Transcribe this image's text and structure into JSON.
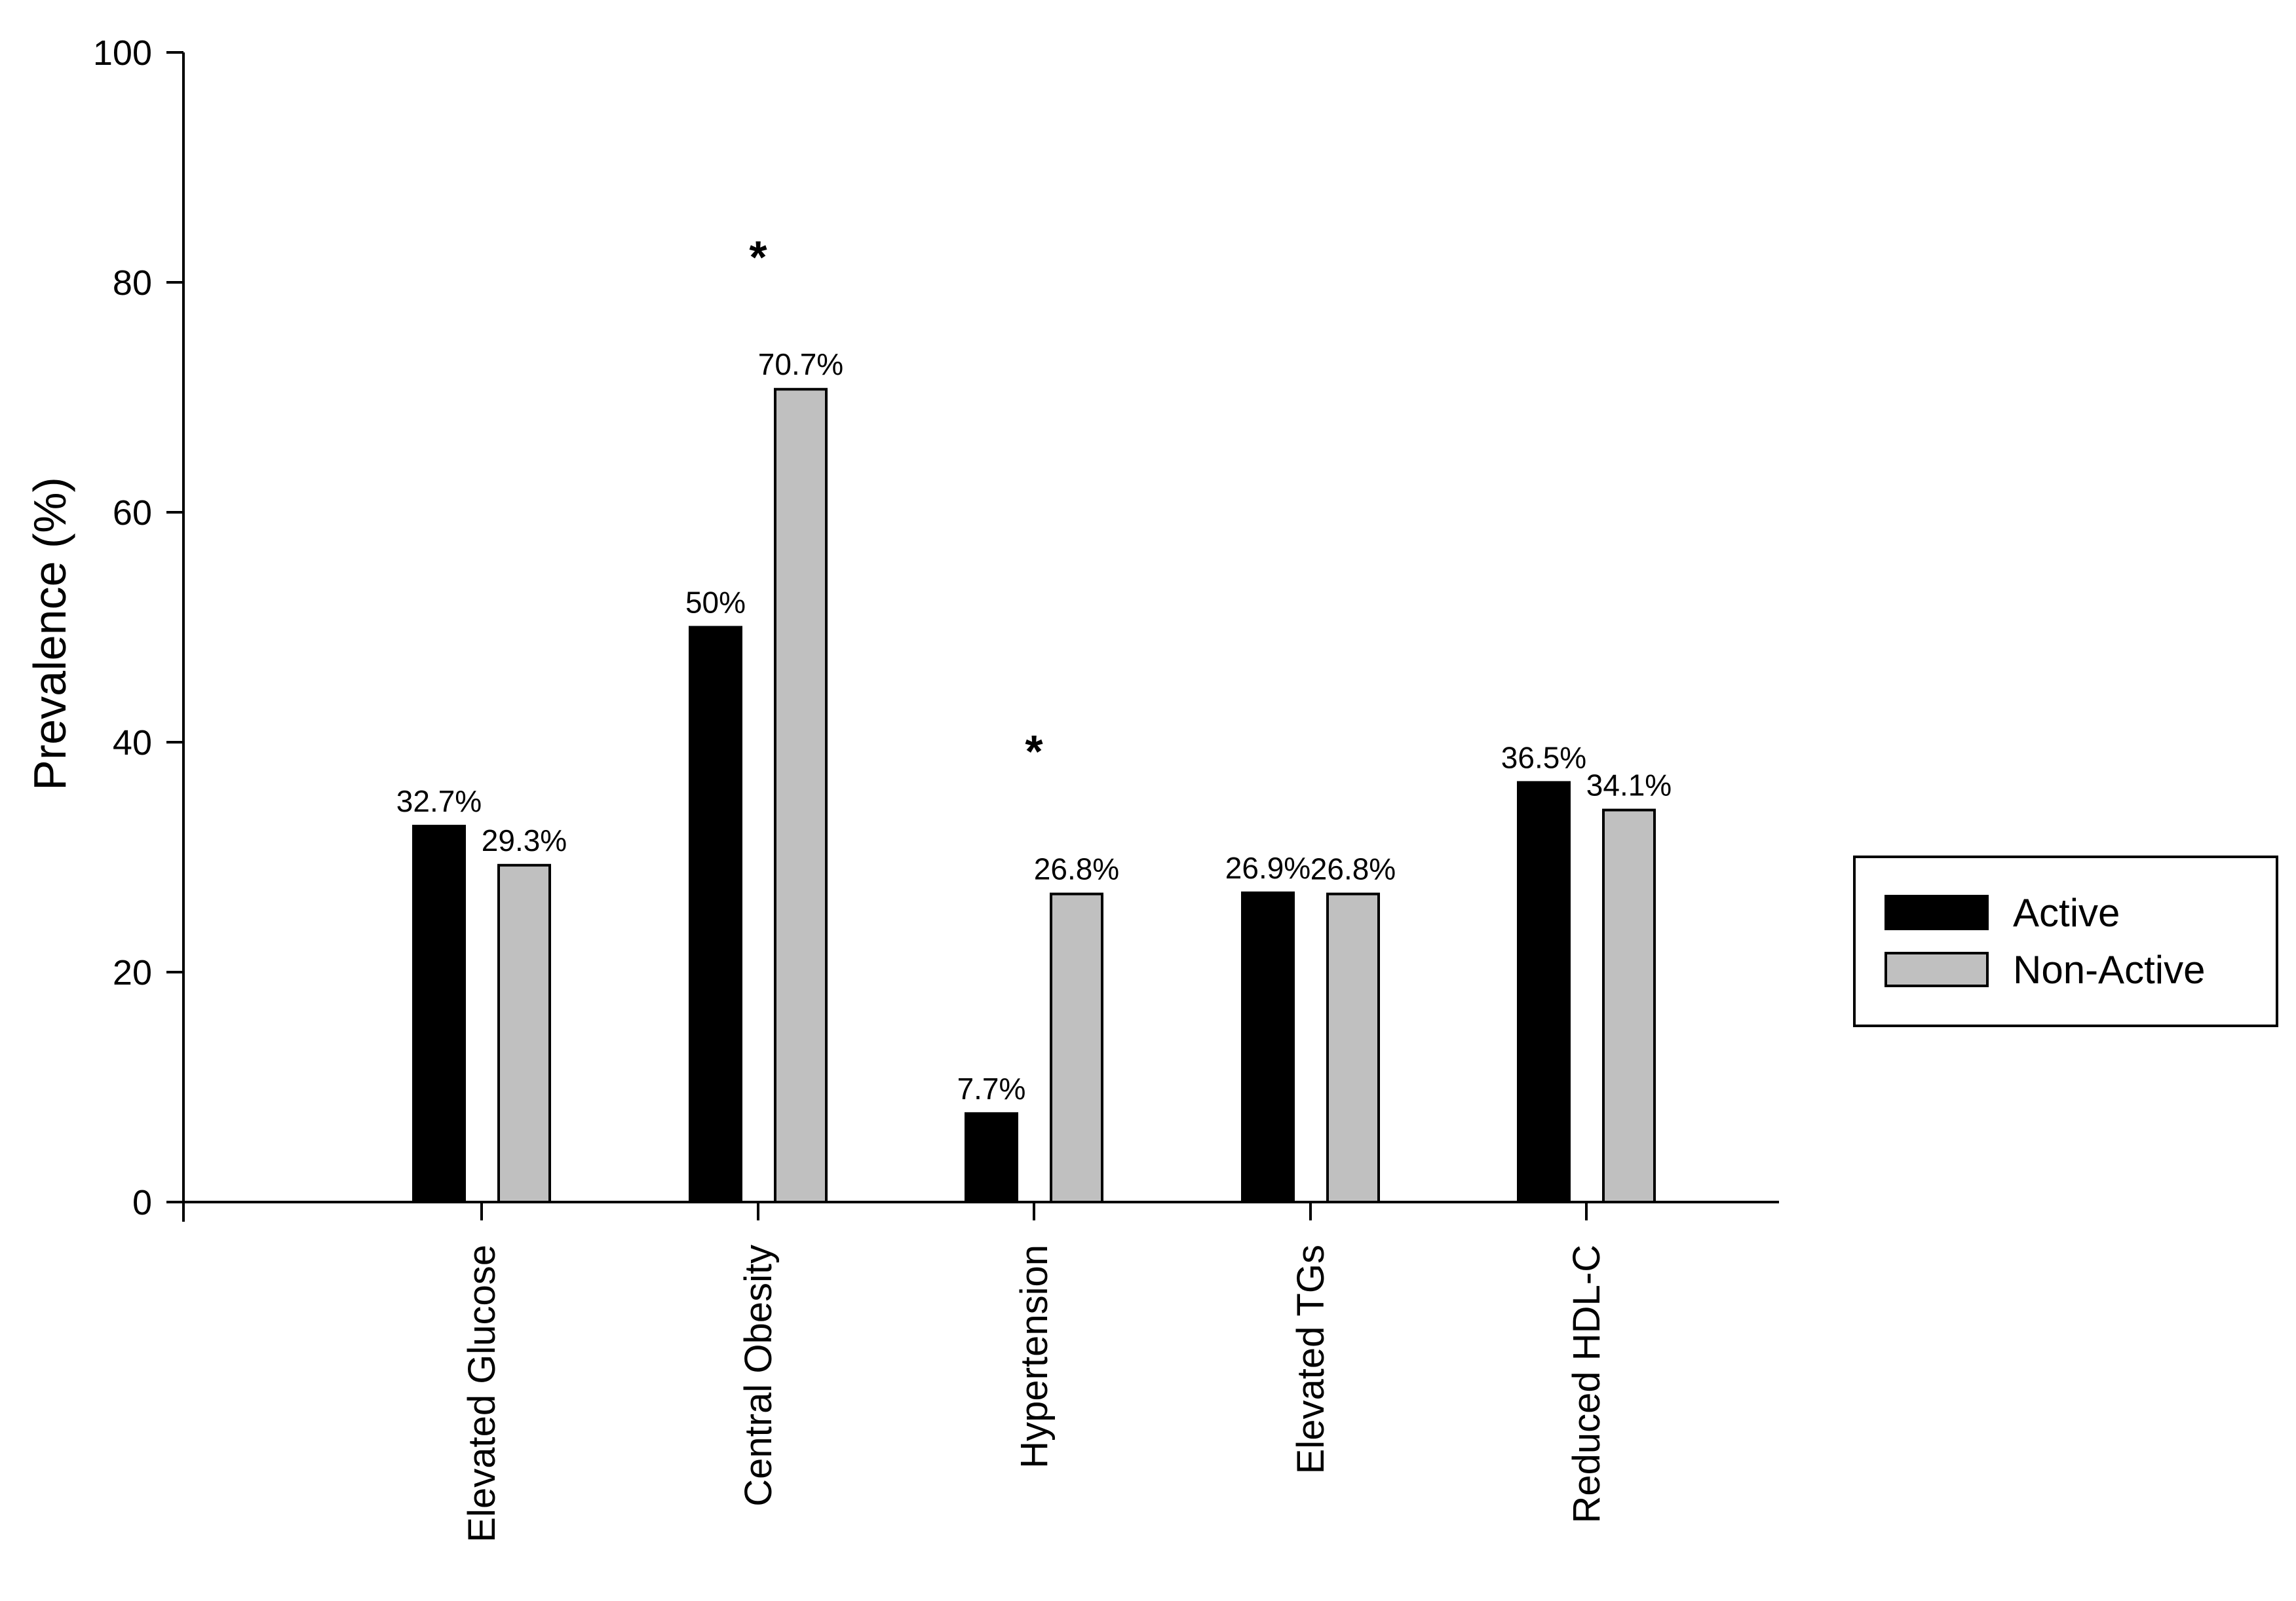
{
  "chart_data": {
    "type": "bar",
    "title": "",
    "xlabel": "",
    "ylabel": "Prevalence (%)",
    "ylim": [
      0,
      100
    ],
    "yticks": [
      0,
      20,
      40,
      60,
      80,
      100
    ],
    "grid": false,
    "legend_position": "right",
    "categories": [
      "Elevated Glucose",
      "Central Obesity",
      "Hypertension",
      "Elevated TGs",
      "Reduced HDL-C"
    ],
    "series": [
      {
        "name": "Active",
        "color": "#000000",
        "values": [
          32.7,
          50,
          7.7,
          26.9,
          36.5
        ],
        "labels": [
          "32.7%",
          "50%",
          "7.7%",
          "26.9%",
          "36.5%"
        ]
      },
      {
        "name": "Non-Active",
        "color": "#c0c0c0",
        "values": [
          29.3,
          70.7,
          26.8,
          26.8,
          34.1
        ],
        "labels": [
          "29.3%",
          "70.7%",
          "26.8%",
          "26.8%",
          "34.1%"
        ]
      }
    ],
    "annotations": [
      {
        "category": "Central Obesity",
        "text": "*",
        "y": 83
      },
      {
        "category": "Hypertension",
        "text": "*",
        "y": 40
      }
    ]
  }
}
